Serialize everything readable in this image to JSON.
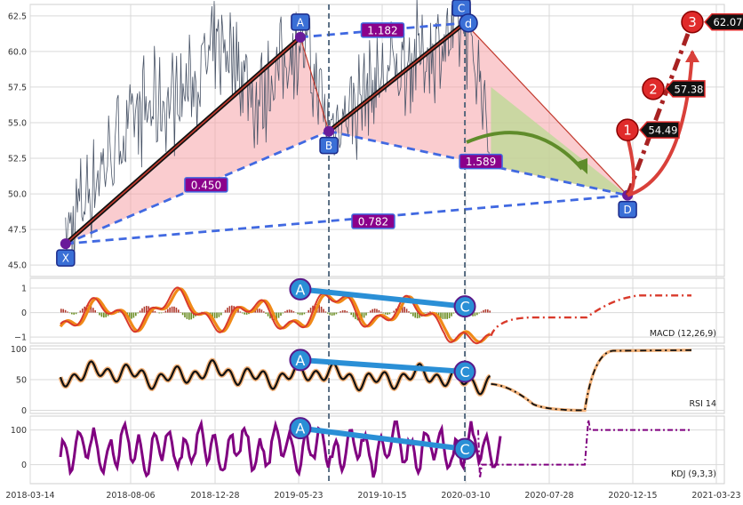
{
  "colors": {
    "price": "#4a5568",
    "grid": "#d9d9d9",
    "pattern_fill": "#f5a3a8",
    "projection_fill": "#b5dc8e",
    "dashed_line": "#4169e1",
    "ratio_box": "#8b008b",
    "marker_box": "#3a6fd6",
    "vline": "#4a6178",
    "macd_fast": "#d93a2b",
    "macd_slow": "#f08a18",
    "rsi": "#111111",
    "rsi_band": "#f2b27a",
    "kdj": "#800080",
    "target": "#e02b2b",
    "divergence": "#2a8fd6"
  },
  "chart_data": [
    {
      "type": "line",
      "panel": "price",
      "x_ticks": [
        "2018-03-14",
        "2018-08-06",
        "2018-12-28",
        "2019-05-23",
        "2019-10-15",
        "2020-03-10",
        "2020-07-28",
        "2020-12-15",
        "2021-03-23"
      ],
      "y_ticks": [
        "45.0",
        "47.5",
        "50.0",
        "52.5",
        "55.0",
        "57.5",
        "60.0",
        "62.5"
      ],
      "ylim": [
        44.2,
        63.3
      ],
      "grid": true,
      "series": [
        {
          "x": "2018-05-10",
          "y": 47.0
        },
        {
          "x": "2018-07-01",
          "y": 51.5
        },
        {
          "x": "2018-09-01",
          "y": 55.5
        },
        {
          "x": "2018-11-15",
          "y": 57.0
        },
        {
          "x": "2019-01-25",
          "y": 60.5
        },
        {
          "x": "2019-03-15",
          "y": 56.5
        },
        {
          "x": "2019-05-23",
          "y": 61.0
        },
        {
          "x": "2019-07-08",
          "y": 54.5
        },
        {
          "x": "2019-09-15",
          "y": 57.5
        },
        {
          "x": "2019-11-20",
          "y": 59.5
        },
        {
          "x": "2020-01-15",
          "y": 60.5
        },
        {
          "x": "2020-02-12",
          "y": 62.0
        },
        {
          "x": "2020-03-10",
          "y": 57.5
        },
        {
          "x": "2020-03-25",
          "y": 53.0
        }
      ],
      "harmonic_points": [
        {
          "label": "X",
          "x": "2018-05-10",
          "y": 46.5
        },
        {
          "label": "A",
          "x": "2019-05-23",
          "y": 61.0
        },
        {
          "label": "B",
          "x": "2019-07-08",
          "y": 54.4
        },
        {
          "label": "C",
          "x": "2020-02-12",
          "y": 62.0
        },
        {
          "label": "D",
          "x": "2020-10-31",
          "y": 49.9
        }
      ],
      "c_tag": "d",
      "ratios": [
        "1.182",
        "0.450",
        "1.589",
        "0.782"
      ],
      "targets": [
        {
          "label": "1",
          "value": "54.49"
        },
        {
          "label": "2",
          "value": "57.38"
        },
        {
          "label": "3",
          "value": "62.07"
        }
      ]
    },
    {
      "type": "line",
      "panel": "macd",
      "title": "MACD (12,26,9)",
      "y_ticks": [
        "1",
        "0",
        "−1"
      ],
      "ylim": [
        -1.25,
        1.4
      ],
      "divergence": [
        "A",
        "C"
      ]
    },
    {
      "type": "line",
      "panel": "rsi",
      "title": "RSI 14",
      "y_ticks": [
        "100",
        "50",
        "0"
      ],
      "ylim": [
        -5,
        105
      ],
      "divergence": [
        "A",
        "C"
      ]
    },
    {
      "type": "line",
      "panel": "kdj",
      "title": "KDJ (9,3,3)",
      "y_ticks": [
        "100",
        "0"
      ],
      "ylim": [
        -55,
        140
      ],
      "divergence": [
        "A",
        "C"
      ]
    }
  ]
}
